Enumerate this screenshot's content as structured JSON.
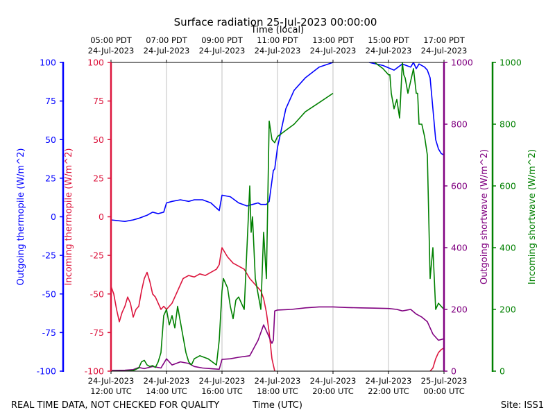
{
  "chart_data": {
    "type": "line",
    "title": "Surface radiation 25-Jul-2023 00:00:00",
    "xlabel_top": "Time (local)",
    "xlabel_bottom": "Time (UTC)",
    "footer_left": "REAL TIME DATA, NOT CHECKED FOR QUALITY",
    "footer_right": "Site: ISS1",
    "x_range_utc_hours": [
      12,
      24
    ],
    "grid": "vertical",
    "x_ticks": [
      {
        "hour": 12,
        "utc": [
          "24-Jul-2023",
          "12:00 UTC"
        ],
        "local": [
          "05:00 PDT",
          "24-Jul-2023"
        ]
      },
      {
        "hour": 14,
        "utc": [
          "24-Jul-2023",
          "14:00 UTC"
        ],
        "local": [
          "07:00 PDT",
          "24-Jul-2023"
        ]
      },
      {
        "hour": 16,
        "utc": [
          "24-Jul-2023",
          "16:00 UTC"
        ],
        "local": [
          "09:00 PDT",
          "24-Jul-2023"
        ]
      },
      {
        "hour": 18,
        "utc": [
          "24-Jul-2023",
          "18:00 UTC"
        ],
        "local": [
          "11:00 PDT",
          "24-Jul-2023"
        ]
      },
      {
        "hour": 20,
        "utc": [
          "24-Jul-2023",
          "20:00 UTC"
        ],
        "local": [
          "13:00 PDT",
          "24-Jul-2023"
        ]
      },
      {
        "hour": 22,
        "utc": [
          "24-Jul-2023",
          "22:00 UTC"
        ],
        "local": [
          "15:00 PDT",
          "24-Jul-2023"
        ]
      },
      {
        "hour": 24,
        "utc": [
          "25-Jul-2023",
          "00:00 UTC"
        ],
        "local": [
          "17:00 PDT",
          "24-Jul-2023"
        ]
      }
    ],
    "axes": [
      {
        "id": "outgoing_thermopile",
        "label": "Outgoing thermopile (W/m^2)",
        "color": "#0000ff",
        "side": "left",
        "range": [
          -100,
          100
        ],
        "ticks": [
          -100,
          -75,
          -50,
          -25,
          0,
          25,
          50,
          75,
          100
        ]
      },
      {
        "id": "incoming_thermopile",
        "label": "Incoming thermopile (W/m^2)",
        "color": "#dc143c",
        "side": "left",
        "range": [
          -100,
          100
        ],
        "ticks": [
          -100,
          -75,
          -50,
          -25,
          0,
          25,
          50,
          75,
          100
        ]
      },
      {
        "id": "outgoing_shortwave",
        "label": "Outgoing shortwave (W/m^2)",
        "color": "#800080",
        "side": "right",
        "range": [
          0,
          1000
        ],
        "ticks": [
          0,
          200,
          400,
          600,
          800,
          1000
        ]
      },
      {
        "id": "incoming_shortwave",
        "label": "Incoming shortwave (W/m^2)",
        "color": "#008000",
        "side": "right",
        "range": [
          0,
          1000
        ],
        "ticks": [
          0,
          200,
          400,
          600,
          800,
          1000
        ]
      }
    ],
    "series": [
      {
        "axis": "outgoing_thermopile",
        "color": "#0000ff",
        "x": [
          12.0,
          12.5,
          12.8,
          13.0,
          13.3,
          13.5,
          13.7,
          13.9,
          14.0,
          14.2,
          14.5,
          14.8,
          15.0,
          15.3,
          15.6,
          15.9,
          16.0,
          16.3,
          16.6,
          16.9,
          17.1,
          17.3,
          17.4,
          17.6,
          17.7,
          17.85,
          17.9,
          18.0,
          18.3,
          18.6,
          19.0,
          19.5,
          20.0
        ],
        "y": [
          -2,
          -3,
          -2,
          -1,
          1,
          3,
          2,
          3,
          9,
          10,
          11,
          10,
          11,
          11,
          9,
          4,
          14,
          13,
          9,
          7,
          8,
          9,
          8,
          8,
          10,
          30,
          31,
          45,
          70,
          82,
          90,
          97,
          100
        ]
      },
      {
        "axis": "outgoing_thermopile",
        "color": "#0000ff",
        "x": [
          21.3,
          21.8,
          22.2,
          22.5,
          22.8,
          22.9,
          23.0,
          23.1,
          23.2,
          23.3,
          23.35,
          23.4,
          23.5,
          23.6,
          23.7,
          23.8,
          23.9,
          24.0
        ],
        "y": [
          100,
          98,
          95,
          99,
          97,
          100,
          96,
          99,
          98,
          97,
          96,
          95,
          90,
          70,
          50,
          44,
          41,
          40
        ]
      },
      {
        "axis": "incoming_thermopile",
        "color": "#dc143c",
        "x": [
          12.0,
          12.1,
          12.2,
          12.3,
          12.4,
          12.5,
          12.6,
          12.7,
          12.8,
          12.9,
          13.0,
          13.1,
          13.2,
          13.3,
          13.4,
          13.5,
          13.6,
          13.7,
          13.8,
          13.9,
          14.0,
          14.2,
          14.4,
          14.6,
          14.8,
          15.0,
          15.2,
          15.4,
          15.6,
          15.8,
          15.9,
          15.95,
          16.0,
          16.2,
          16.4,
          16.6,
          16.8,
          17.0,
          17.2,
          17.4,
          17.5,
          17.6,
          17.7,
          17.8,
          17.9
        ],
        "y": [
          -45,
          -50,
          -60,
          -68,
          -62,
          -58,
          -52,
          -56,
          -65,
          -60,
          -58,
          -48,
          -40,
          -36,
          -42,
          -50,
          -52,
          -56,
          -60,
          -58,
          -60,
          -56,
          -48,
          -40,
          -38,
          -39,
          -37,
          -38,
          -36,
          -34,
          -31,
          -25,
          -20,
          -26,
          -30,
          -32,
          -34,
          -40,
          -44,
          -48,
          -53,
          -62,
          -75,
          -92,
          -100
        ]
      },
      {
        "axis": "incoming_thermopile",
        "color": "#dc143c",
        "x": [
          23.5,
          23.6,
          23.7,
          23.8,
          23.9,
          24.0
        ],
        "y": [
          -100,
          -98,
          -92,
          -88,
          -86,
          -85
        ]
      },
      {
        "axis": "outgoing_shortwave",
        "color": "#800080",
        "x": [
          12.0,
          12.5,
          12.8,
          13.0,
          13.2,
          13.5,
          13.8,
          14.0,
          14.2,
          14.5,
          14.8,
          15.0,
          15.3,
          15.6,
          15.9,
          16.0,
          16.3,
          16.6,
          17.0,
          17.3,
          17.5,
          17.6,
          17.7,
          17.8,
          17.85,
          17.9,
          18.0,
          18.5,
          19.0,
          19.5,
          20.0,
          20.5,
          21.0,
          21.5,
          22.0,
          22.3,
          22.5,
          22.8,
          23.0,
          23.2,
          23.4,
          23.6,
          23.8,
          24.0
        ],
        "y": [
          2,
          3,
          5,
          12,
          8,
          15,
          10,
          40,
          20,
          30,
          25,
          15,
          10,
          8,
          6,
          38,
          40,
          45,
          50,
          100,
          150,
          130,
          110,
          90,
          100,
          195,
          198,
          200,
          205,
          208,
          208,
          206,
          205,
          204,
          203,
          200,
          195,
          200,
          185,
          175,
          160,
          120,
          100,
          105
        ]
      },
      {
        "axis": "incoming_shortwave",
        "color": "#008000",
        "x": [
          12.0,
          12.5,
          12.8,
          13.0,
          13.1,
          13.2,
          13.3,
          13.4,
          13.5,
          13.6,
          13.7,
          13.8,
          13.9,
          14.0,
          14.1,
          14.2,
          14.3,
          14.4,
          14.5,
          14.6,
          14.7,
          14.8,
          14.9,
          15.0,
          15.2,
          15.5,
          15.8,
          15.9,
          16.0,
          16.05,
          16.1,
          16.2,
          16.3,
          16.4,
          16.5,
          16.6,
          16.8,
          17.0,
          17.05,
          17.1,
          17.2,
          17.3,
          17.4,
          17.5,
          17.6,
          17.7,
          17.75,
          17.8,
          17.9,
          18.0,
          18.3,
          18.6,
          19.0,
          19.5,
          20.0
        ],
        "y": [
          0,
          0,
          2,
          10,
          30,
          35,
          20,
          15,
          18,
          12,
          30,
          60,
          180,
          200,
          150,
          180,
          140,
          210,
          160,
          110,
          60,
          30,
          20,
          40,
          50,
          40,
          20,
          100,
          260,
          300,
          290,
          270,
          210,
          170,
          230,
          240,
          200,
          600,
          450,
          500,
          300,
          250,
          200,
          450,
          300,
          810,
          780,
          750,
          740,
          760,
          780,
          800,
          840,
          870,
          900
        ]
      },
      {
        "axis": "incoming_shortwave",
        "color": "#008000",
        "x": [
          21.5,
          21.8,
          22.0,
          22.05,
          22.1,
          22.2,
          22.3,
          22.4,
          22.5,
          22.55,
          22.6,
          22.7,
          22.8,
          22.9,
          23.0,
          23.05,
          23.1,
          23.2,
          23.3,
          23.4,
          23.5,
          23.6,
          23.7,
          23.8,
          23.9,
          24.0
        ],
        "y": [
          1000,
          980,
          960,
          960,
          900,
          850,
          880,
          820,
          1000,
          960,
          950,
          900,
          940,
          980,
          900,
          900,
          800,
          800,
          760,
          700,
          300,
          400,
          200,
          220,
          210,
          200
        ]
      }
    ]
  }
}
